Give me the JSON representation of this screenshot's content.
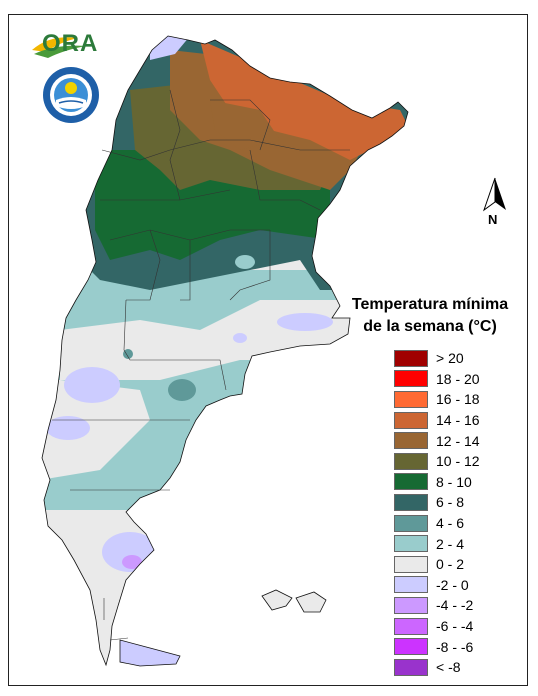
{
  "logo": {
    "ora_text": "ORA"
  },
  "north_arrow": {
    "label": "N"
  },
  "legend": {
    "title_line1": "Temperatura mínima",
    "title_line2": "de la semana (°C)",
    "items": [
      {
        "label": "> 20",
        "color": "#a00000"
      },
      {
        "label": "18 - 20",
        "color": "#ff0000"
      },
      {
        "label": "16 - 18",
        "color": "#ff6a33"
      },
      {
        "label": "14 - 16",
        "color": "#cc6633"
      },
      {
        "label": "12 - 14",
        "color": "#996633"
      },
      {
        "label": "10 - 12",
        "color": "#666633"
      },
      {
        "label": "8 - 10",
        "color": "#166a33"
      },
      {
        "label": "6 - 8",
        "color": "#336666"
      },
      {
        "label": "4 - 6",
        "color": "#5f9999"
      },
      {
        "label": "2 - 4",
        "color": "#99cccc"
      },
      {
        "label": "0 - 2",
        "color": "#eaeaea"
      },
      {
        "label": "-2 - 0",
        "color": "#ccccff"
      },
      {
        "label": "-4 - -2",
        "color": "#cc99ff"
      },
      {
        "label": "-6 - -4",
        "color": "#cc66ff"
      },
      {
        "label": "-8 - -6",
        "color": "#cc33ff"
      },
      {
        "label": "< -8",
        "color": "#9933cc"
      }
    ]
  }
}
